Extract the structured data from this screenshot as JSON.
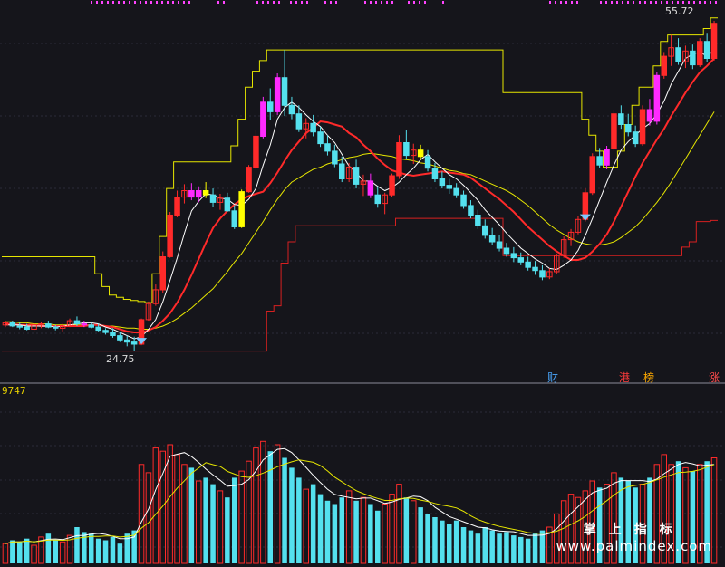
{
  "chart_data": {
    "type": "candlestick",
    "price_panel": {
      "ylim": [
        22,
        57
      ],
      "high_label": "55.72",
      "low_label": "24.75",
      "tags": [
        {
          "text": "财",
          "color": "#4aa8ff"
        },
        {
          "text": "港",
          "color": "#ff3b3b"
        },
        {
          "text": "榜",
          "color": "#ffaa00"
        },
        {
          "text": "涨",
          "color": "#ff4b4b"
        }
      ]
    },
    "volume_panel": {
      "label": "9747",
      "ylim": [
        0,
        100
      ]
    },
    "candles": [
      [
        27.2,
        27.6,
        27.0,
        27.4
      ],
      [
        27.4,
        27.6,
        27.0,
        27.1
      ],
      [
        27.1,
        27.4,
        26.8,
        27.0
      ],
      [
        27.0,
        27.3,
        26.7,
        26.8
      ],
      [
        26.8,
        27.4,
        26.6,
        27.2
      ],
      [
        27.2,
        27.5,
        26.9,
        27.3
      ],
      [
        27.3,
        27.6,
        26.9,
        27.0
      ],
      [
        27.0,
        27.2,
        26.7,
        26.9
      ],
      [
        26.9,
        27.3,
        26.6,
        27.1
      ],
      [
        27.1,
        27.8,
        27.0,
        27.6
      ],
      [
        27.6,
        28.0,
        27.1,
        27.3
      ],
      [
        27.3,
        27.6,
        27.0,
        27.2
      ],
      [
        27.2,
        27.4,
        26.9,
        27.0
      ],
      [
        27.0,
        27.3,
        26.6,
        26.7
      ],
      [
        26.7,
        26.9,
        26.3,
        26.5
      ],
      [
        26.5,
        26.9,
        26.0,
        26.2
      ],
      [
        26.2,
        26.5,
        25.6,
        25.8
      ],
      [
        25.8,
        26.2,
        25.2,
        25.6
      ],
      [
        25.6,
        26.1,
        24.75,
        25.4
      ],
      [
        25.4,
        27.8,
        25.3,
        27.7
      ],
      [
        27.7,
        29.4,
        27.6,
        29.2
      ],
      [
        29.2,
        31.0,
        29.0,
        30.5
      ],
      [
        30.5,
        34.1,
        30.2,
        33.6
      ],
      [
        33.6,
        37.8,
        33.5,
        37.5
      ],
      [
        37.5,
        39.8,
        37.3,
        39.2
      ],
      [
        39.2,
        40.4,
        38.6,
        39.8
      ],
      [
        39.8,
        40.5,
        38.9,
        39.2
      ],
      [
        39.2,
        40.2,
        38.7,
        39.8
      ],
      [
        39.8,
        40.6,
        39.1,
        39.4
      ],
      [
        39.4,
        40.0,
        38.3,
        38.7
      ],
      [
        38.7,
        39.5,
        38.0,
        39.1
      ],
      [
        39.1,
        39.6,
        37.8,
        37.9
      ],
      [
        37.9,
        38.4,
        36.2,
        36.4
      ],
      [
        36.4,
        39.9,
        36.3,
        39.7
      ],
      [
        39.7,
        42.2,
        39.6,
        42.0
      ],
      [
        42.0,
        45.5,
        41.8,
        44.9
      ],
      [
        44.9,
        48.6,
        44.7,
        48.1
      ],
      [
        48.1,
        49.4,
        46.4,
        47.2
      ],
      [
        47.2,
        50.8,
        46.9,
        50.4
      ],
      [
        50.4,
        53.0,
        46.8,
        47.8
      ],
      [
        47.8,
        48.6,
        46.5,
        47.0
      ],
      [
        47.0,
        47.8,
        45.3,
        45.6
      ],
      [
        45.6,
        46.6,
        44.7,
        46.1
      ],
      [
        46.1,
        46.9,
        44.9,
        45.3
      ],
      [
        45.3,
        45.8,
        43.9,
        44.2
      ],
      [
        44.2,
        45.0,
        43.1,
        43.5
      ],
      [
        43.5,
        44.1,
        42.0,
        42.3
      ],
      [
        42.3,
        43.0,
        40.6,
        40.9
      ],
      [
        40.9,
        42.4,
        40.6,
        42.0
      ],
      [
        42.0,
        42.7,
        40.0,
        40.4
      ],
      [
        40.4,
        41.3,
        39.3,
        40.7
      ],
      [
        40.7,
        41.4,
        39.1,
        39.4
      ],
      [
        39.4,
        40.2,
        38.2,
        38.6
      ],
      [
        38.6,
        39.6,
        37.6,
        39.4
      ],
      [
        39.4,
        41.4,
        39.2,
        41.2
      ],
      [
        41.2,
        45.0,
        40.9,
        44.3
      ],
      [
        44.3,
        45.5,
        42.8,
        43.1
      ],
      [
        43.1,
        44.2,
        42.3,
        43.6
      ],
      [
        43.6,
        44.1,
        42.7,
        43.0
      ],
      [
        43.0,
        43.6,
        41.6,
        41.9
      ],
      [
        41.9,
        42.4,
        40.6,
        40.9
      ],
      [
        40.9,
        41.6,
        40.0,
        40.3
      ],
      [
        40.3,
        40.9,
        39.5,
        40.0
      ],
      [
        40.0,
        40.5,
        39.1,
        39.4
      ],
      [
        39.4,
        39.8,
        38.1,
        38.4
      ],
      [
        38.4,
        38.9,
        37.2,
        37.5
      ],
      [
        37.5,
        38.0,
        36.2,
        36.5
      ],
      [
        36.5,
        37.1,
        35.3,
        35.6
      ],
      [
        35.6,
        36.3,
        34.7,
        35.0
      ],
      [
        35.0,
        35.6,
        34.1,
        34.4
      ],
      [
        34.4,
        34.9,
        33.6,
        33.9
      ],
      [
        33.9,
        34.5,
        33.1,
        33.5
      ],
      [
        33.5,
        34.0,
        32.8,
        33.1
      ],
      [
        33.1,
        33.6,
        32.3,
        32.6
      ],
      [
        32.6,
        33.2,
        31.9,
        32.3
      ],
      [
        32.3,
        32.8,
        31.4,
        31.7
      ],
      [
        31.7,
        32.5,
        31.5,
        32.2
      ],
      [
        32.2,
        33.9,
        32.0,
        33.7
      ],
      [
        33.7,
        35.5,
        33.5,
        35.2
      ],
      [
        35.2,
        36.2,
        34.6,
        35.9
      ],
      [
        35.9,
        37.4,
        35.7,
        37.1
      ],
      [
        37.1,
        40.0,
        36.9,
        39.6
      ],
      [
        39.6,
        43.3,
        39.4,
        43.0
      ],
      [
        43.0,
        43.8,
        41.9,
        42.2
      ],
      [
        42.2,
        44.0,
        41.8,
        43.7
      ],
      [
        43.7,
        47.4,
        43.5,
        47.0
      ],
      [
        47.0,
        47.8,
        45.6,
        46.0
      ],
      [
        46.0,
        47.0,
        44.9,
        45.3
      ],
      [
        45.3,
        45.9,
        43.9,
        44.2
      ],
      [
        44.2,
        47.8,
        44.0,
        47.4
      ],
      [
        47.4,
        48.4,
        45.9,
        46.3
      ],
      [
        46.3,
        50.9,
        46.0,
        50.6
      ],
      [
        50.6,
        52.8,
        50.3,
        52.4
      ],
      [
        52.4,
        54.4,
        51.5,
        53.2
      ],
      [
        53.2,
        54.1,
        51.6,
        51.9
      ],
      [
        51.9,
        53.4,
        51.3,
        52.9
      ],
      [
        52.9,
        53.5,
        51.2,
        51.6
      ],
      [
        51.6,
        54.1,
        51.4,
        53.8
      ],
      [
        53.8,
        54.6,
        51.9,
        52.2
      ],
      [
        52.2,
        55.72,
        52.0,
        55.5
      ]
    ],
    "volumes": [
      12,
      14,
      13,
      15,
      11,
      16,
      18,
      14,
      13,
      17,
      22,
      19,
      18,
      15,
      14,
      16,
      12,
      18,
      20,
      60,
      55,
      70,
      68,
      72,
      66,
      60,
      58,
      50,
      52,
      48,
      44,
      40,
      52,
      56,
      62,
      70,
      74,
      68,
      72,
      64,
      58,
      52,
      45,
      48,
      42,
      38,
      36,
      40,
      44,
      38,
      40,
      36,
      32,
      36,
      42,
      48,
      40,
      38,
      34,
      30,
      28,
      26,
      24,
      26,
      22,
      20,
      18,
      22,
      20,
      18,
      19,
      17,
      16,
      15,
      18,
      20,
      22,
      30,
      38,
      42,
      40,
      44,
      50,
      46,
      48,
      55,
      52,
      50,
      46,
      48,
      52,
      60,
      66,
      60,
      62,
      58,
      56,
      60,
      62,
      64
    ],
    "ma5_line_values": [
      27.2,
      27.2,
      27.2,
      27.1,
      27.1,
      27.1,
      27.1,
      27.0,
      27.1,
      27.2,
      27.3,
      27.4,
      27.4,
      27.3,
      27.0,
      26.8,
      26.5,
      26.2,
      25.9,
      26.1,
      26.8,
      27.7,
      29.4,
      31.4,
      33.5,
      35.8,
      37.9,
      38.8,
      39.5,
      39.4,
      39.1,
      39.0,
      38.5,
      38.4,
      39.0,
      40.0,
      42.2,
      44.1,
      46.5,
      47.6,
      48.1,
      47.6,
      46.9,
      46.3,
      45.8,
      45.0,
      44.3,
      43.2,
      42.1,
      41.5,
      40.7,
      40.7,
      40.2,
      39.8,
      40.1,
      40.6,
      41.3,
      41.9,
      42.7,
      43.2,
      42.5,
      41.9,
      41.3,
      40.9,
      40.3,
      39.6,
      38.9,
      38.0,
      37.3,
      36.6,
      35.8,
      35.1,
      34.4,
      33.9,
      33.4,
      33.0,
      32.5,
      32.4,
      32.8,
      33.3,
      34.2,
      35.6,
      37.2,
      38.9,
      40.6,
      42.2,
      43.6,
      44.4,
      45.0,
      45.6,
      46.1,
      47.0,
      48.2,
      49.8,
      51.0,
      52.2,
      52.6,
      52.8,
      52.4,
      53.0
    ],
    "ma10_line_values": [
      27.3,
      27.3,
      27.2,
      27.2,
      27.2,
      27.1,
      27.1,
      27.1,
      27.1,
      27.1,
      27.1,
      27.1,
      27.2,
      27.2,
      27.1,
      27.0,
      26.8,
      26.6,
      26.5,
      26.5,
      26.7,
      27.0,
      27.6,
      28.3,
      29.3,
      30.5,
      31.9,
      33.4,
      34.9,
      36.3,
      37.2,
      37.9,
      38.5,
      39.0,
      39.3,
      39.5,
      39.7,
      40.5,
      41.5,
      42.6,
      43.6,
      44.4,
      45.2,
      45.7,
      46.3,
      46.2,
      46.0,
      45.8,
      45.2,
      44.8,
      44.1,
      43.5,
      42.8,
      42.2,
      41.7,
      41.5,
      41.3,
      41.2,
      41.3,
      41.4,
      41.5,
      41.6,
      41.5,
      41.4,
      41.3,
      41.0,
      40.5,
      40.0,
      39.5,
      39.0,
      38.4,
      37.8,
      37.1,
      36.4,
      35.8,
      35.2,
      34.6,
      34.1,
      33.7,
      33.3,
      33.3,
      33.5,
      34.1,
      34.8,
      35.7,
      36.9,
      38.3,
      39.7,
      41.1,
      42.4,
      43.5,
      44.6,
      45.6,
      46.8,
      47.9,
      49.0,
      50.0,
      50.9,
      51.5,
      52.2
    ],
    "ma20_line_values": [
      27.5,
      27.5,
      27.4,
      27.4,
      27.3,
      27.3,
      27.3,
      27.2,
      27.2,
      27.2,
      27.2,
      27.2,
      27.2,
      27.2,
      27.1,
      27.1,
      27.0,
      26.9,
      26.9,
      26.8,
      26.8,
      26.9,
      27.1,
      27.4,
      27.8,
      28.3,
      28.8,
      29.4,
      30.0,
      30.6,
      31.4,
      32.2,
      33.1,
      33.9,
      34.9,
      35.9,
      36.9,
      38.0,
      39.0,
      39.9,
      40.6,
      41.0,
      41.4,
      41.8,
      42.0,
      42.3,
      42.5,
      42.7,
      42.9,
      43.0,
      43.2,
      43.3,
      43.2,
      43.1,
      43.0,
      42.8,
      42.7,
      42.6,
      42.4,
      42.3,
      42.1,
      41.9,
      41.7,
      41.6,
      41.4,
      41.3,
      41.0,
      40.7,
      40.4,
      40.1,
      39.8,
      39.4,
      38.9,
      38.4,
      37.8,
      37.2,
      36.6,
      36.1,
      35.7,
      35.3,
      35.0,
      34.8,
      34.7,
      34.7,
      34.8,
      35.0,
      35.4,
      35.9,
      36.4,
      37.1,
      37.9,
      38.7,
      39.6,
      40.6,
      41.7,
      42.8,
      43.9,
      45.0,
      46.1,
      47.2
    ],
    "channel_upper": [
      33.6,
      33.6,
      33.6,
      33.6,
      33.6,
      33.6,
      33.6,
      33.6,
      33.6,
      33.6,
      33.6,
      33.6,
      33.6,
      32.0,
      30.8,
      30.0,
      29.8,
      29.6,
      29.5,
      29.4,
      29.3,
      32.0,
      35.5,
      40.0,
      42.5,
      42.5,
      42.5,
      42.5,
      42.5,
      42.5,
      42.5,
      42.5,
      44.0,
      46.5,
      49.5,
      51.0,
      52.0,
      53.0,
      53.0,
      53.0,
      53.0,
      53.0,
      53.0,
      53.0,
      53.0,
      53.0,
      53.0,
      53.0,
      53.0,
      53.0,
      53.0,
      53.0,
      53.0,
      53.0,
      53.0,
      53.0,
      53.0,
      53.0,
      53.0,
      53.0,
      53.0,
      53.0,
      53.0,
      53.0,
      53.0,
      53.0,
      53.0,
      53.0,
      53.0,
      53.0,
      49.0,
      49.0,
      49.0,
      49.0,
      49.0,
      49.0,
      49.0,
      49.0,
      49.0,
      49.0,
      49.0,
      46.5,
      45.0,
      43.5,
      42.0,
      42.0,
      43.5,
      46.0,
      47.8,
      49.5,
      49.5,
      51.5,
      53.8,
      54.4,
      54.4,
      54.4,
      54.4,
      54.4,
      55.0,
      56.0
    ],
    "channel_lower": [
      24.75,
      24.75,
      24.75,
      24.75,
      24.75,
      24.75,
      24.75,
      24.75,
      24.75,
      24.75,
      24.75,
      24.75,
      24.75,
      24.75,
      24.75,
      24.75,
      24.75,
      24.75,
      24.75,
      24.75,
      24.75,
      24.75,
      24.75,
      24.75,
      24.75,
      24.75,
      24.75,
      24.75,
      24.75,
      24.75,
      24.75,
      24.75,
      24.75,
      24.75,
      24.75,
      24.75,
      24.75,
      24.75,
      24.75,
      24.75,
      24.75,
      24.75,
      24.75,
      24.75,
      24.75,
      24.75,
      24.75,
      24.75,
      24.75,
      24.75,
      24.75,
      24.75,
      24.75,
      24.75,
      24.75,
      24.75,
      24.75,
      24.75,
      24.75,
      24.75,
      24.75,
      24.75,
      24.75,
      24.75,
      24.75,
      24.75,
      24.75,
      24.75,
      24.75,
      24.75,
      24.75,
      24.75,
      24.75,
      24.75,
      24.75,
      24.75,
      24.75,
      24.75,
      24.75,
      24.75,
      24.75,
      24.75,
      24.75,
      24.75,
      24.75,
      24.75,
      24.75,
      24.75,
      24.75,
      24.75,
      24.75,
      24.75,
      24.75,
      24.75,
      24.75,
      24.75,
      24.75,
      24.75,
      24.75,
      24.75
    ],
    "support_line": [
      24.7,
      24.7,
      24.7,
      24.7,
      24.7,
      24.7,
      24.7,
      24.7,
      24.7,
      24.7,
      24.7,
      24.7,
      24.7,
      24.7,
      24.7,
      24.7,
      24.7,
      24.7,
      24.7,
      24.7,
      24.7,
      24.7,
      24.7,
      24.7,
      24.7,
      24.7,
      24.7,
      24.7,
      24.7,
      24.7,
      24.7,
      24.7,
      24.7,
      24.7,
      24.7,
      24.7,
      24.7,
      24.7,
      24.7,
      24.7,
      24.7,
      24.7,
      24.7,
      24.7,
      24.7,
      24.7,
      24.7,
      24.7,
      24.7,
      24.7,
      24.7,
      24.7,
      24.7,
      24.7,
      24.7,
      24.7,
      24.7,
      24.7,
      24.7,
      24.7,
      24.7,
      24.7,
      24.7,
      24.7,
      24.7,
      24.7,
      24.7,
      24.7,
      24.7,
      24.7,
      24.7,
      24.7,
      24.7,
      24.7,
      24.7,
      24.7,
      24.7,
      24.7,
      24.7,
      24.7,
      24.7,
      24.7,
      24.7,
      24.7,
      24.7,
      24.7,
      24.7,
      24.7,
      24.7,
      24.7,
      24.7,
      24.7,
      24.7,
      24.7,
      24.7,
      24.7,
      24.7,
      24.7,
      24.7,
      24.7
    ],
    "stop_line": [
      24.75,
      24.75,
      24.75,
      24.75,
      24.75,
      24.75,
      24.75,
      24.75,
      24.75,
      24.75,
      24.75,
      24.75,
      24.75,
      24.75,
      24.75,
      24.75,
      24.75,
      24.75,
      24.75,
      24.75,
      24.75,
      24.75,
      24.75,
      24.75,
      24.75,
      24.75,
      24.75,
      24.75,
      24.75,
      24.75,
      24.75,
      24.75,
      24.75,
      24.75,
      24.75,
      24.75,
      24.75,
      28.5,
      29.0,
      33.0,
      35.0,
      36.5,
      36.5,
      36.5,
      36.5,
      36.5,
      36.5,
      36.5,
      36.5,
      36.5,
      36.5,
      36.5,
      36.5,
      36.5,
      36.5,
      37.2,
      37.2,
      37.2,
      37.2,
      37.2,
      37.2,
      37.2,
      37.2,
      37.2,
      37.2,
      37.2,
      37.2,
      37.2,
      37.2,
      37.2,
      33.7,
      33.7,
      33.7,
      33.7,
      33.7,
      33.7,
      33.7,
      33.7,
      33.7,
      33.7,
      33.7,
      33.7,
      33.7,
      33.7,
      33.7,
      33.7,
      33.7,
      33.7,
      33.7,
      33.7,
      33.7,
      33.7,
      33.7,
      33.7,
      33.7,
      34.5,
      35.0,
      36.9,
      36.9,
      37.0
    ],
    "colors": {
      "up": "#ff2a2a",
      "down": "#54e0ee",
      "highlight_up": "#ff2aff",
      "highlight_yellow": "#ffff00",
      "ma5": "#ffffff",
      "ma10": "#ff2a2a",
      "ma20": "#e6e600",
      "channel": "#e6e600",
      "stop": "#d62020",
      "vol_ma1": "#ffffff",
      "vol_ma2": "#e6e600",
      "grid": "#2a2a38",
      "axis_dots": "#ff44ff"
    }
  },
  "watermark": {
    "cn": "掌上指标",
    "url": "www.palmindex.com"
  }
}
